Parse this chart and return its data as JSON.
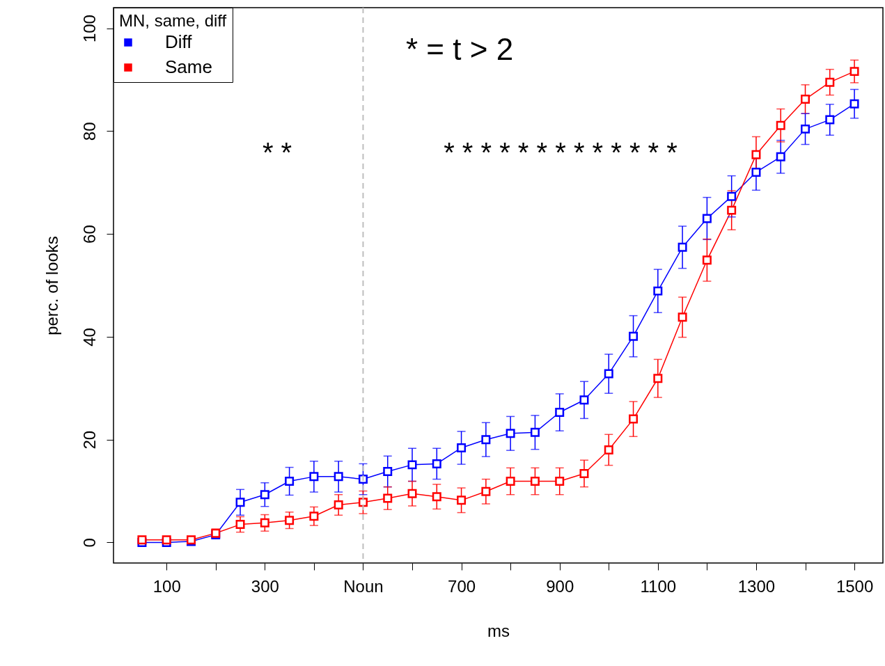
{
  "chart_data": {
    "type": "line",
    "xlabel": "ms",
    "ylabel": "perc. of looks",
    "legend_title": "MN, same, diff",
    "legend": "top left",
    "marker": "square",
    "line_style": "solid",
    "grid": false,
    "x": [
      50,
      100,
      150,
      200,
      250,
      300,
      350,
      400,
      450,
      500,
      550,
      600,
      650,
      700,
      750,
      800,
      850,
      900,
      950,
      1000,
      1050,
      1100,
      1150,
      1200,
      1250,
      1300,
      1350,
      1400,
      1450,
      1500
    ],
    "series": [
      {
        "name": "Diff",
        "color": "#0000ff",
        "values": [
          0,
          0,
          0.2,
          1.5,
          7.8,
          9.3,
          11.9,
          12.8,
          12.8,
          12.3,
          13.8,
          15.1,
          15.3,
          18.4,
          20,
          21.2,
          21.4,
          25.3,
          27.7,
          32.8,
          40.1,
          48.9,
          57.4,
          63,
          67.3,
          72,
          75,
          80.4,
          82.2,
          85.3
        ],
        "errors": [
          0.5,
          0.5,
          0.5,
          0.8,
          2.5,
          2.3,
          2.7,
          3,
          3,
          3,
          3,
          3.2,
          3,
          3.2,
          3.3,
          3.3,
          3.3,
          3.6,
          3.6,
          3.8,
          4,
          4.2,
          4.1,
          4.1,
          4,
          3.5,
          3.2,
          3,
          3,
          2.8
        ]
      },
      {
        "name": "Same",
        "color": "#ff0000",
        "values": [
          0.5,
          0.5,
          0.5,
          1.8,
          3.5,
          3.8,
          4.3,
          5.1,
          7.3,
          7.8,
          8.6,
          9.5,
          8.9,
          8.2,
          9.9,
          11.9,
          11.9,
          11.9,
          13.4,
          18,
          24,
          31.9,
          43.8,
          54.9,
          64.6,
          75.4,
          81.1,
          86.2,
          89.5,
          91.6
        ],
        "errors": [
          0.5,
          0.5,
          0.5,
          0.8,
          1.5,
          1.6,
          1.6,
          1.8,
          2,
          2.2,
          2.2,
          2.4,
          2.4,
          2.4,
          2.4,
          2.6,
          2.6,
          2.6,
          2.6,
          3,
          3.4,
          3.7,
          3.9,
          4.1,
          3.8,
          3.5,
          3.2,
          2.8,
          2.5,
          2.2
        ]
      }
    ],
    "xlim": [
      -8,
      1558
    ],
    "xticks": [
      100,
      {
        "value": 200,
        "label": null
      },
      300,
      {
        "value": 400,
        "label": null
      },
      {
        "value": 500,
        "label": "Noun"
      },
      {
        "value": 600,
        "label": null
      },
      700,
      {
        "value": 800,
        "label": null
      },
      900,
      {
        "value": 1000,
        "label": null
      },
      1100,
      {
        "value": 1200,
        "label": null
      },
      1300,
      {
        "value": 1400,
        "label": null
      },
      1500
    ],
    "ylim": [
      -4,
      104
    ],
    "yticks": [
      0,
      20,
      40,
      60,
      80,
      100
    ],
    "ref_lines": [
      {
        "axis": "x",
        "value": 500,
        "color": "#bebebe",
        "line_style": "dashed"
      }
    ],
    "annotations": [
      "* = t > 2",
      "* *",
      "* * * * * * * * * * * * *"
    ]
  }
}
